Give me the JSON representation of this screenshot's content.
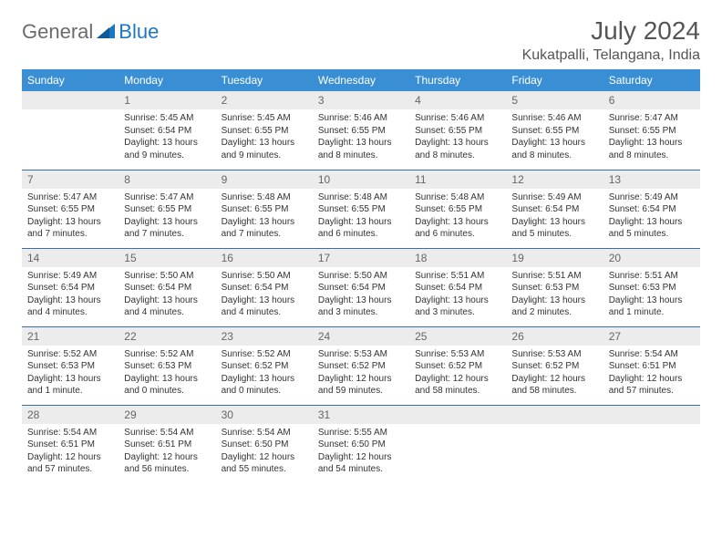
{
  "logo": {
    "general": "General",
    "blue": "Blue"
  },
  "header": {
    "month_title": "July 2024",
    "location": "Kukatpalli, Telangana, India"
  },
  "weekdays": [
    "Sunday",
    "Monday",
    "Tuesday",
    "Wednesday",
    "Thursday",
    "Friday",
    "Saturday"
  ],
  "colors": {
    "header_bg": "#3a8fd4",
    "header_text": "#ffffff",
    "daynum_bg": "#ececec",
    "daynum_text": "#666666",
    "rule": "#3a6fa8",
    "body_text": "#333333",
    "logo_gray": "#6b6b6b",
    "logo_blue": "#1f77c0"
  },
  "first_weekday_index": 1,
  "days": [
    {
      "n": 1,
      "sunrise": "5:45 AM",
      "sunset": "6:54 PM",
      "daylight": "13 hours and 9 minutes."
    },
    {
      "n": 2,
      "sunrise": "5:45 AM",
      "sunset": "6:55 PM",
      "daylight": "13 hours and 9 minutes."
    },
    {
      "n": 3,
      "sunrise": "5:46 AM",
      "sunset": "6:55 PM",
      "daylight": "13 hours and 8 minutes."
    },
    {
      "n": 4,
      "sunrise": "5:46 AM",
      "sunset": "6:55 PM",
      "daylight": "13 hours and 8 minutes."
    },
    {
      "n": 5,
      "sunrise": "5:46 AM",
      "sunset": "6:55 PM",
      "daylight": "13 hours and 8 minutes."
    },
    {
      "n": 6,
      "sunrise": "5:47 AM",
      "sunset": "6:55 PM",
      "daylight": "13 hours and 8 minutes."
    },
    {
      "n": 7,
      "sunrise": "5:47 AM",
      "sunset": "6:55 PM",
      "daylight": "13 hours and 7 minutes."
    },
    {
      "n": 8,
      "sunrise": "5:47 AM",
      "sunset": "6:55 PM",
      "daylight": "13 hours and 7 minutes."
    },
    {
      "n": 9,
      "sunrise": "5:48 AM",
      "sunset": "6:55 PM",
      "daylight": "13 hours and 7 minutes."
    },
    {
      "n": 10,
      "sunrise": "5:48 AM",
      "sunset": "6:55 PM",
      "daylight": "13 hours and 6 minutes."
    },
    {
      "n": 11,
      "sunrise": "5:48 AM",
      "sunset": "6:55 PM",
      "daylight": "13 hours and 6 minutes."
    },
    {
      "n": 12,
      "sunrise": "5:49 AM",
      "sunset": "6:54 PM",
      "daylight": "13 hours and 5 minutes."
    },
    {
      "n": 13,
      "sunrise": "5:49 AM",
      "sunset": "6:54 PM",
      "daylight": "13 hours and 5 minutes."
    },
    {
      "n": 14,
      "sunrise": "5:49 AM",
      "sunset": "6:54 PM",
      "daylight": "13 hours and 4 minutes."
    },
    {
      "n": 15,
      "sunrise": "5:50 AM",
      "sunset": "6:54 PM",
      "daylight": "13 hours and 4 minutes."
    },
    {
      "n": 16,
      "sunrise": "5:50 AM",
      "sunset": "6:54 PM",
      "daylight": "13 hours and 4 minutes."
    },
    {
      "n": 17,
      "sunrise": "5:50 AM",
      "sunset": "6:54 PM",
      "daylight": "13 hours and 3 minutes."
    },
    {
      "n": 18,
      "sunrise": "5:51 AM",
      "sunset": "6:54 PM",
      "daylight": "13 hours and 3 minutes."
    },
    {
      "n": 19,
      "sunrise": "5:51 AM",
      "sunset": "6:53 PM",
      "daylight": "13 hours and 2 minutes."
    },
    {
      "n": 20,
      "sunrise": "5:51 AM",
      "sunset": "6:53 PM",
      "daylight": "13 hours and 1 minute."
    },
    {
      "n": 21,
      "sunrise": "5:52 AM",
      "sunset": "6:53 PM",
      "daylight": "13 hours and 1 minute."
    },
    {
      "n": 22,
      "sunrise": "5:52 AM",
      "sunset": "6:53 PM",
      "daylight": "13 hours and 0 minutes."
    },
    {
      "n": 23,
      "sunrise": "5:52 AM",
      "sunset": "6:52 PM",
      "daylight": "13 hours and 0 minutes."
    },
    {
      "n": 24,
      "sunrise": "5:53 AM",
      "sunset": "6:52 PM",
      "daylight": "12 hours and 59 minutes."
    },
    {
      "n": 25,
      "sunrise": "5:53 AM",
      "sunset": "6:52 PM",
      "daylight": "12 hours and 58 minutes."
    },
    {
      "n": 26,
      "sunrise": "5:53 AM",
      "sunset": "6:52 PM",
      "daylight": "12 hours and 58 minutes."
    },
    {
      "n": 27,
      "sunrise": "5:54 AM",
      "sunset": "6:51 PM",
      "daylight": "12 hours and 57 minutes."
    },
    {
      "n": 28,
      "sunrise": "5:54 AM",
      "sunset": "6:51 PM",
      "daylight": "12 hours and 57 minutes."
    },
    {
      "n": 29,
      "sunrise": "5:54 AM",
      "sunset": "6:51 PM",
      "daylight": "12 hours and 56 minutes."
    },
    {
      "n": 30,
      "sunrise": "5:54 AM",
      "sunset": "6:50 PM",
      "daylight": "12 hours and 55 minutes."
    },
    {
      "n": 31,
      "sunrise": "5:55 AM",
      "sunset": "6:50 PM",
      "daylight": "12 hours and 54 minutes."
    }
  ],
  "labels": {
    "sunrise": "Sunrise:",
    "sunset": "Sunset:",
    "daylight": "Daylight:"
  }
}
